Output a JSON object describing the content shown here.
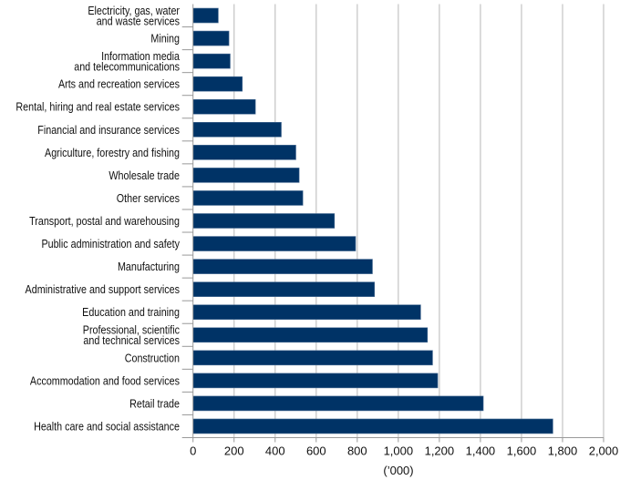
{
  "chart_data": {
    "type": "bar",
    "orientation": "horizontal",
    "categories": [
      [
        "Electricity, gas, water",
        "and waste services"
      ],
      [
        "Mining"
      ],
      [
        "Information media",
        "and telecommunications"
      ],
      [
        "Arts and recreation services"
      ],
      [
        "Rental, hiring and real estate services"
      ],
      [
        "Financial and insurance services"
      ],
      [
        "Agriculture, forestry and fishing"
      ],
      [
        "Wholesale trade"
      ],
      [
        "Other services"
      ],
      [
        "Transport, postal and warehousing"
      ],
      [
        "Public administration and safety"
      ],
      [
        "Manufacturing"
      ],
      [
        "Administrative and support services"
      ],
      [
        "Education and training"
      ],
      [
        "Professional, scientific",
        "and technical services"
      ],
      [
        "Construction"
      ],
      [
        "Accommodation and food services"
      ],
      [
        "Retail trade"
      ],
      [
        "Health care and social assistance"
      ]
    ],
    "values": [
      123,
      175,
      181,
      240,
      304,
      430,
      501,
      517,
      535,
      689,
      792,
      874,
      884,
      1109,
      1142,
      1167,
      1192,
      1414,
      1753
    ],
    "xlabel": "(’000)",
    "xlim": [
      0,
      2000
    ],
    "xticks": [
      0,
      200,
      400,
      600,
      800,
      1000,
      1200,
      1400,
      1600,
      1800,
      2000
    ],
    "xtick_labels": [
      "0",
      "200",
      "400",
      "600",
      "800",
      "1,000",
      "1,200",
      "1,400",
      "1,600",
      "1,800",
      "2,000"
    ],
    "grid": "vertical",
    "legend": "none",
    "colors": {
      "bar": "#003366",
      "grid": "#c8c8c8",
      "axis": "#999999"
    }
  }
}
